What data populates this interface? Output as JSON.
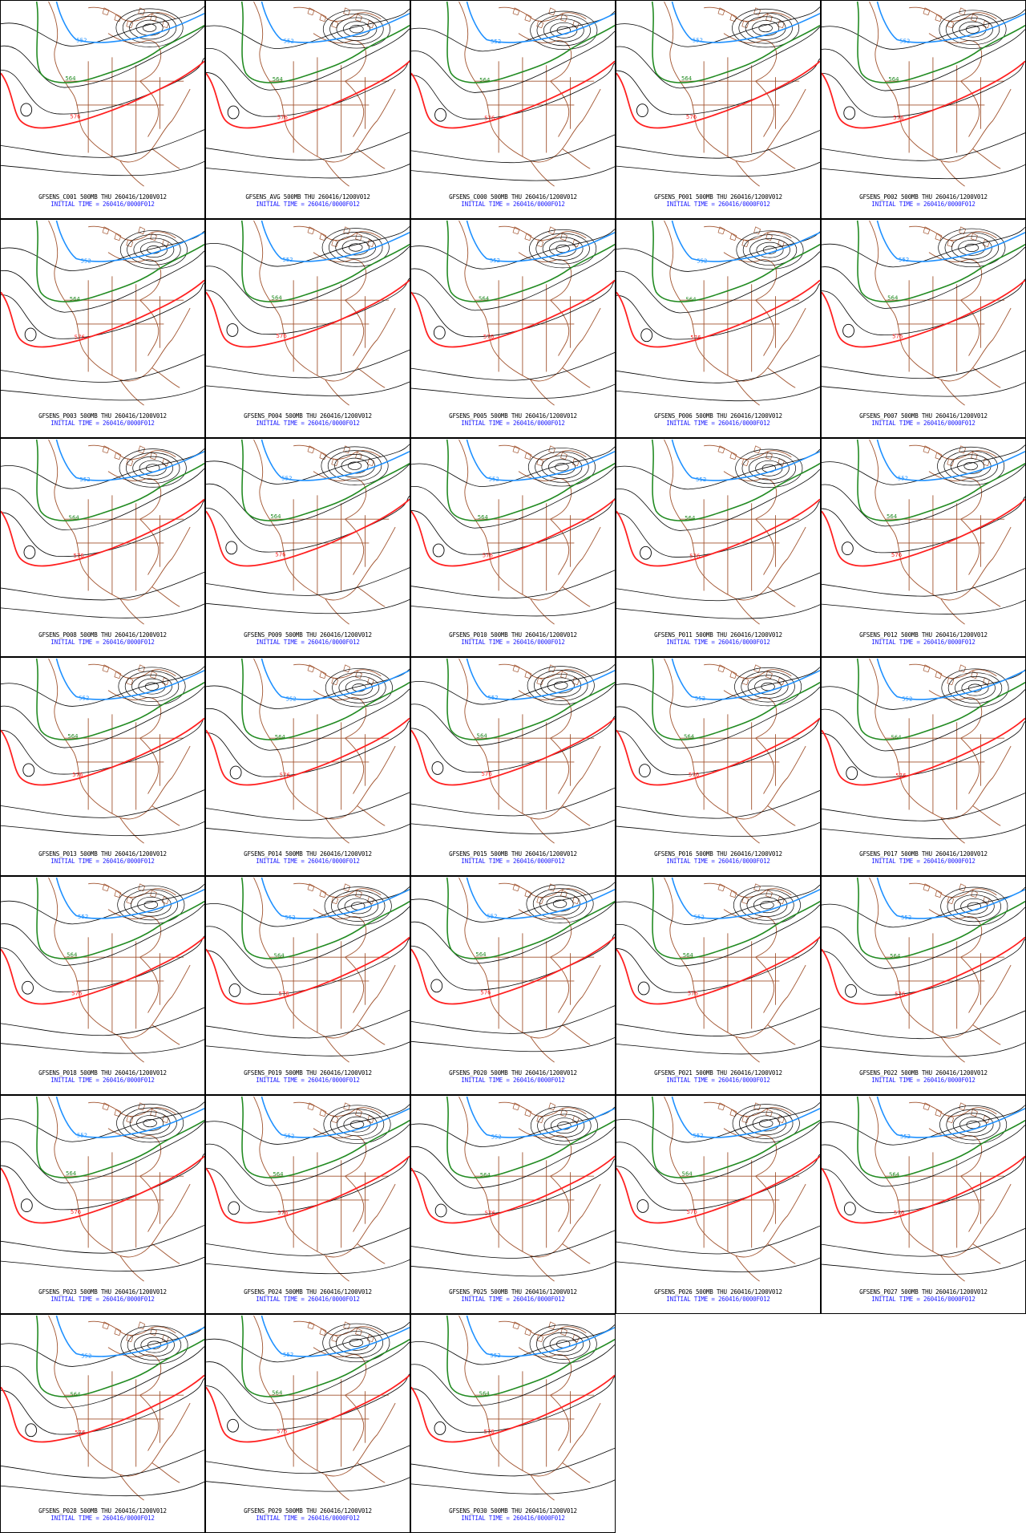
{
  "colors": {
    "background": "#ffffff",
    "border": "#000000",
    "coast": "#a0522d",
    "height_contour": "#000000",
    "contour_552": "#1e90ff",
    "contour_564": "#228b22",
    "contour_576": "#ff2020",
    "caption_title": "#000000",
    "caption_time": "#1a1aff"
  },
  "contour_labels": {
    "blue": "552",
    "green": "564",
    "red": "576"
  },
  "panels": [
    {
      "title": "GFSENS_C001 500MB THU 260416/1200V012",
      "time": "INITIAL TIME = 260416/0000F012"
    },
    {
      "title": "GFSENS_AVG 500MB THU 260416/1200V012",
      "time": "INITIAL TIME = 260416/0000F012"
    },
    {
      "title": "GFSENS_C000 500MB THU 260416/1200V012",
      "time": "INITIAL TIME = 260416/0000F012"
    },
    {
      "title": "GFSENS_P001 500MB THU 260416/1200V012",
      "time": "INITIAL TIME = 260416/0000F012"
    },
    {
      "title": "GFSENS_P002 500MB THU 260416/1200V012",
      "time": "INITIAL TIME = 260416/0000F012"
    },
    {
      "title": "GFSENS_P003 500MB THU 260416/1200V012",
      "time": "INITIAL TIME = 260416/0000F012"
    },
    {
      "title": "GFSENS_P004 500MB THU 260416/1200V012",
      "time": "INITIAL TIME = 260416/0000F012"
    },
    {
      "title": "GFSENS_P005 500MB THU 260416/1200V012",
      "time": "INITIAL TIME = 260416/0000F012"
    },
    {
      "title": "GFSENS_P006 500MB THU 260416/1200V012",
      "time": "INITIAL TIME = 260416/0000F012"
    },
    {
      "title": "GFSENS_P007 500MB THU 260416/1200V012",
      "time": "INITIAL TIME = 260416/0000F012"
    },
    {
      "title": "GFSENS_P008 500MB THU 260416/1200V012",
      "time": "INITIAL TIME = 260416/0000F012"
    },
    {
      "title": "GFSENS_P009 500MB THU 260416/1200V012",
      "time": "INITIAL TIME = 260416/0000F012"
    },
    {
      "title": "GFSENS_P010 500MB THU 260416/1200V012",
      "time": "INITIAL TIME = 260416/0000F012"
    },
    {
      "title": "GFSENS_P011 500MB THU 260416/1200V012",
      "time": "INITIAL TIME = 260416/0000F012"
    },
    {
      "title": "GFSENS_P012 500MB THU 260416/1200V012",
      "time": "INITIAL TIME = 260416/0000F012"
    },
    {
      "title": "GFSENS_P013 500MB THU 260416/1200V012",
      "time": "INITIAL TIME = 260416/0000F012"
    },
    {
      "title": "GFSENS_P014 500MB THU 260416/1200V012",
      "time": "INITIAL TIME = 260416/0000F012"
    },
    {
      "title": "GFSENS_P015 500MB THU 260416/1200V012",
      "time": "INITIAL TIME = 260416/0000F012"
    },
    {
      "title": "GFSENS_P016 500MB THU 260416/1200V012",
      "time": "INITIAL TIME = 260416/0000F012"
    },
    {
      "title": "GFSENS_P017 500MB THU 260416/1200V012",
      "time": "INITIAL TIME = 260416/0000F012"
    },
    {
      "title": "GFSENS_P018 500MB THU 260416/1200V012",
      "time": "INITIAL TIME = 260416/0000F012"
    },
    {
      "title": "GFSENS_P019 500MB THU 260416/1200V012",
      "time": "INITIAL TIME = 260416/0000F012"
    },
    {
      "title": "GFSENS_P020 500MB THU 260416/1200V012",
      "time": "INITIAL TIME = 260416/0000F012"
    },
    {
      "title": "GFSENS_P021 500MB THU 260416/1200V012",
      "time": "INITIAL TIME = 260416/0000F012"
    },
    {
      "title": "GFSENS_P022 500MB THU 260416/1200V012",
      "time": "INITIAL TIME = 260416/0000F012"
    },
    {
      "title": "GFSENS_P023 500MB THU 260416/1200V012",
      "time": "INITIAL TIME = 260416/0000F012"
    },
    {
      "title": "GFSENS_P024 500MB THU 260416/1200V012",
      "time": "INITIAL TIME = 260416/0000F012"
    },
    {
      "title": "GFSENS_P025 500MB THU 260416/1200V012",
      "time": "INITIAL TIME = 260416/0000F012"
    },
    {
      "title": "GFSENS_P026 500MB THU 260416/1200V012",
      "time": "INITIAL TIME = 260416/0000F012"
    },
    {
      "title": "GFSENS_P027 500MB THU 260416/1200V012",
      "time": "INITIAL TIME = 260416/0000F012"
    },
    {
      "title": "GFSENS_P028 500MB THU 260416/1200V012",
      "time": "INITIAL TIME = 260416/0000F012"
    },
    {
      "title": "GFSENS_P029 500MB THU 260416/1200V012",
      "time": "INITIAL TIME = 260416/0000F012"
    },
    {
      "title": "GFSENS_P030 500MB THU 260416/1200V012",
      "time": "INITIAL TIME = 260416/0000F012"
    }
  ]
}
